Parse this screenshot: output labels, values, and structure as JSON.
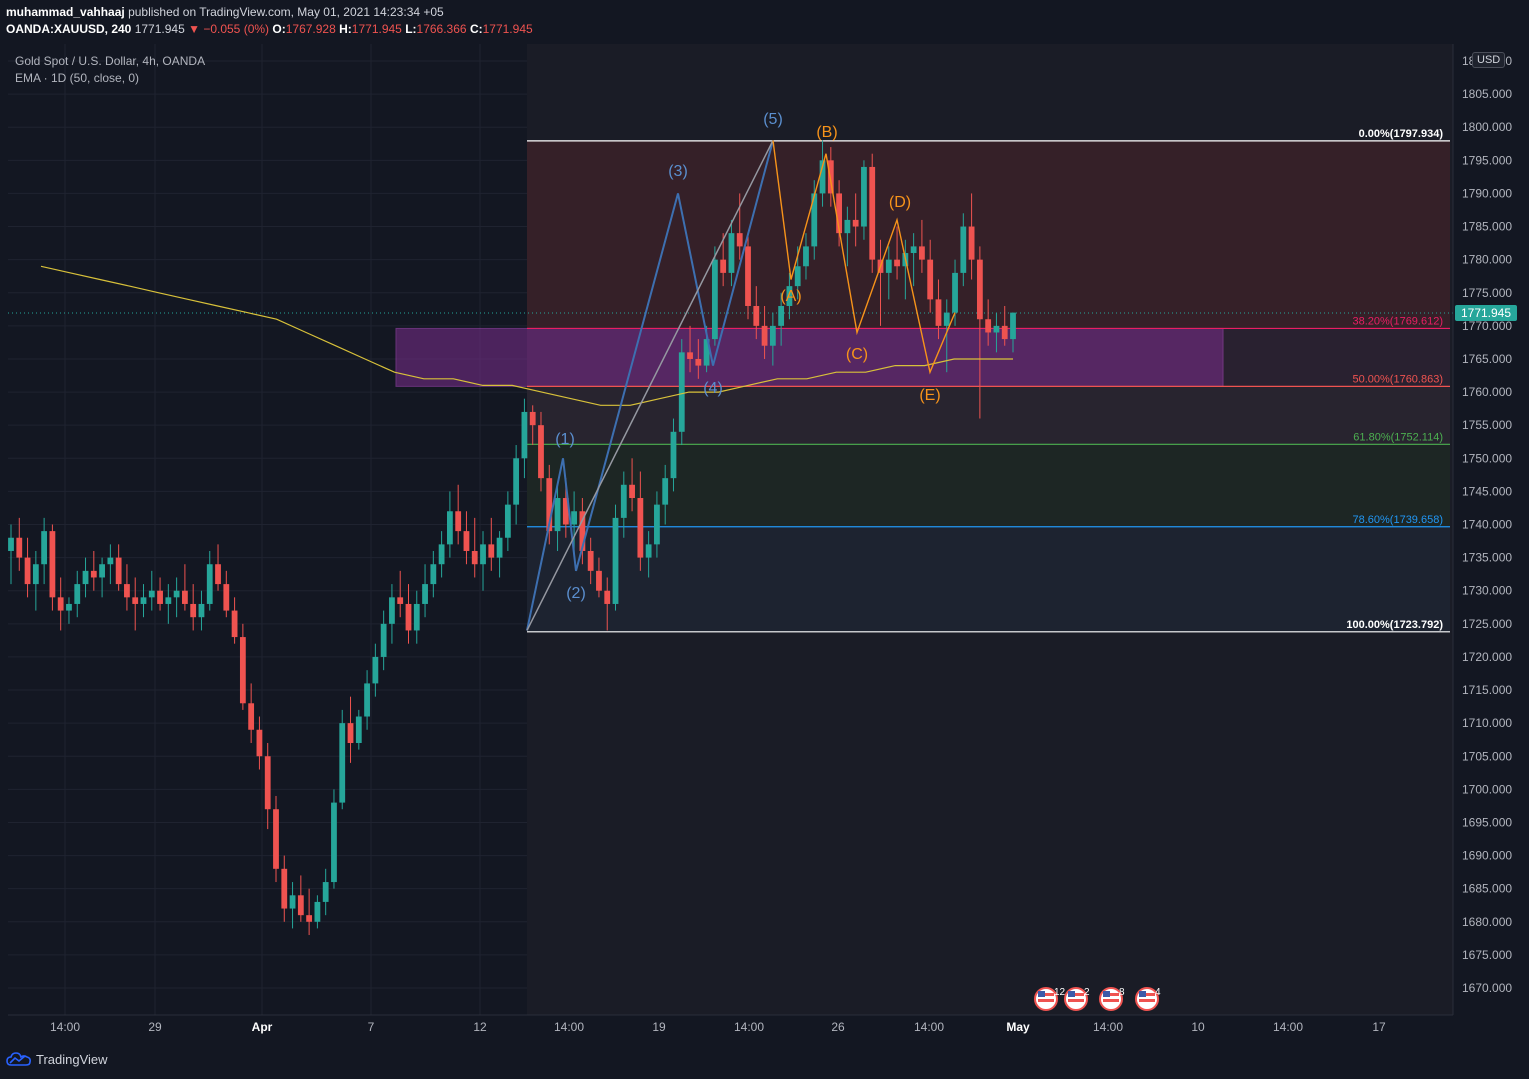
{
  "header": {
    "author": "muhammad_vahhaaj",
    "published_text": "published on TradingView.com, May 01, 2021 14:23:34 +05",
    "symbol": "OANDA:XAUUSD, 240",
    "last": "1771.945",
    "change": "▼ −0.055 (0%)",
    "o_label": "O:",
    "o_value": "1767.928",
    "h_label": "H:",
    "h_value": "1771.945",
    "l_label": "L:",
    "l_value": "1766.366",
    "c_label": "C:",
    "c_value": "1771.945"
  },
  "legend": {
    "title": "Gold Spot / U.S. Dollar, 4h, OANDA",
    "indicator": "EMA · 1D (50, close, 0)"
  },
  "currency": "USD",
  "footer": {
    "brand": "TradingView"
  },
  "colors": {
    "background": "#131722",
    "up": "#26a69a",
    "down": "#ef5350",
    "ema": "#d8c13a",
    "wave_blue": "#3d6fb0",
    "wave_orange": "#f7931a",
    "zone_purple": "#9c27b0"
  },
  "chart_data": {
    "type": "candlestick",
    "title": "Gold Spot / U.S. Dollar, 4h, OANDA",
    "ylim": [
      1665,
      1815
    ],
    "y_ticks": [
      1670,
      1675,
      1680,
      1685,
      1690,
      1695,
      1700,
      1705,
      1710,
      1715,
      1720,
      1725,
      1730,
      1735,
      1740,
      1745,
      1750,
      1755,
      1760,
      1765,
      1770,
      1775,
      1780,
      1785,
      1790,
      1795,
      1800,
      1805,
      1810
    ],
    "x_ticks": [
      "14:00",
      "29",
      "Apr",
      "7",
      "12",
      "14:00",
      "19",
      "14:00",
      "26",
      "14:00",
      "May",
      "14:00",
      "10",
      "14:00",
      "17"
    ],
    "current_price": "1771.945",
    "candles": [
      [
        1736,
        1740,
        1731,
        1738
      ],
      [
        1738,
        1741,
        1733,
        1735
      ],
      [
        1735,
        1738,
        1729,
        1731
      ],
      [
        1731,
        1736,
        1727,
        1734
      ],
      [
        1734,
        1741,
        1731,
        1739
      ],
      [
        1739,
        1740,
        1727,
        1729
      ],
      [
        1729,
        1732,
        1724,
        1727
      ],
      [
        1727,
        1729,
        1725,
        1728
      ],
      [
        1728,
        1733,
        1726,
        1731
      ],
      [
        1731,
        1735,
        1729,
        1733
      ],
      [
        1733,
        1736,
        1730,
        1732
      ],
      [
        1732,
        1735,
        1729,
        1734
      ],
      [
        1734,
        1737,
        1731,
        1735
      ],
      [
        1735,
        1737,
        1730,
        1731
      ],
      [
        1731,
        1734,
        1727,
        1729
      ],
      [
        1729,
        1732,
        1724,
        1728
      ],
      [
        1728,
        1731,
        1726,
        1729
      ],
      [
        1729,
        1733,
        1727,
        1730
      ],
      [
        1730,
        1732,
        1727,
        1728
      ],
      [
        1728,
        1731,
        1725,
        1729
      ],
      [
        1729,
        1732,
        1726,
        1730
      ],
      [
        1730,
        1734,
        1727,
        1728
      ],
      [
        1728,
        1731,
        1724,
        1726
      ],
      [
        1726,
        1730,
        1724,
        1728
      ],
      [
        1728,
        1736,
        1727,
        1734
      ],
      [
        1734,
        1737,
        1730,
        1731
      ],
      [
        1731,
        1733,
        1726,
        1727
      ],
      [
        1727,
        1729,
        1722,
        1723
      ],
      [
        1723,
        1725,
        1712,
        1713
      ],
      [
        1713,
        1716,
        1707,
        1709
      ],
      [
        1709,
        1711,
        1703,
        1705
      ],
      [
        1705,
        1707,
        1694,
        1697
      ],
      [
        1697,
        1699,
        1686,
        1688
      ],
      [
        1688,
        1690,
        1680,
        1682
      ],
      [
        1682,
        1686,
        1679,
        1684
      ],
      [
        1684,
        1687,
        1680,
        1681
      ],
      [
        1681,
        1685,
        1678,
        1680
      ],
      [
        1680,
        1684,
        1679,
        1683
      ],
      [
        1683,
        1688,
        1681,
        1686
      ],
      [
        1686,
        1700,
        1685,
        1698
      ],
      [
        1698,
        1712,
        1697,
        1710
      ],
      [
        1710,
        1714,
        1704,
        1707
      ],
      [
        1707,
        1712,
        1706,
        1711
      ],
      [
        1711,
        1718,
        1709,
        1716
      ],
      [
        1716,
        1722,
        1714,
        1720
      ],
      [
        1720,
        1727,
        1718,
        1725
      ],
      [
        1725,
        1731,
        1722,
        1729
      ],
      [
        1729,
        1733,
        1726,
        1728
      ],
      [
        1728,
        1731,
        1722,
        1724
      ],
      [
        1724,
        1730,
        1722,
        1728
      ],
      [
        1728,
        1734,
        1726,
        1731
      ],
      [
        1731,
        1736,
        1729,
        1734
      ],
      [
        1734,
        1739,
        1732,
        1737
      ],
      [
        1737,
        1745,
        1735,
        1742
      ],
      [
        1742,
        1746,
        1737,
        1739
      ],
      [
        1739,
        1742,
        1734,
        1736
      ],
      [
        1736,
        1741,
        1732,
        1734
      ],
      [
        1734,
        1739,
        1730,
        1737
      ],
      [
        1737,
        1741,
        1733,
        1735
      ],
      [
        1735,
        1739,
        1732,
        1738
      ],
      [
        1738,
        1745,
        1736,
        1743
      ],
      [
        1743,
        1752,
        1740,
        1750
      ],
      [
        1750,
        1759,
        1747,
        1757
      ],
      [
        1757,
        1758,
        1752,
        1755
      ],
      [
        1755,
        1757,
        1745,
        1747
      ],
      [
        1747,
        1749,
        1737,
        1739
      ],
      [
        1739,
        1746,
        1736,
        1744
      ],
      [
        1744,
        1747,
        1738,
        1740
      ],
      [
        1740,
        1745,
        1735,
        1742
      ],
      [
        1742,
        1744,
        1734,
        1736
      ],
      [
        1736,
        1738,
        1731,
        1733
      ],
      [
        1733,
        1735,
        1729,
        1730
      ],
      [
        1730,
        1732,
        1724,
        1728
      ],
      [
        1728,
        1743,
        1727,
        1741
      ],
      [
        1741,
        1748,
        1738,
        1746
      ],
      [
        1746,
        1750,
        1742,
        1744
      ],
      [
        1744,
        1748,
        1733,
        1735
      ],
      [
        1735,
        1739,
        1732,
        1737
      ],
      [
        1737,
        1745,
        1735,
        1743
      ],
      [
        1743,
        1749,
        1740,
        1747
      ],
      [
        1747,
        1756,
        1745,
        1754
      ],
      [
        1754,
        1768,
        1752,
        1766
      ],
      [
        1766,
        1770,
        1763,
        1765
      ],
      [
        1765,
        1768,
        1762,
        1764
      ],
      [
        1764,
        1770,
        1763,
        1768
      ],
      [
        1768,
        1782,
        1767,
        1780
      ],
      [
        1780,
        1784,
        1776,
        1778
      ],
      [
        1778,
        1786,
        1776,
        1784
      ],
      [
        1784,
        1790,
        1780,
        1782
      ],
      [
        1782,
        1784,
        1771,
        1773
      ],
      [
        1773,
        1776,
        1768,
        1770
      ],
      [
        1770,
        1773,
        1765,
        1767
      ],
      [
        1767,
        1772,
        1764,
        1770
      ],
      [
        1770,
        1775,
        1767,
        1773
      ],
      [
        1773,
        1778,
        1771,
        1776
      ],
      [
        1776,
        1782,
        1774,
        1779
      ],
      [
        1779,
        1784,
        1777,
        1782
      ],
      [
        1782,
        1792,
        1780,
        1790
      ],
      [
        1790,
        1798,
        1788,
        1795
      ],
      [
        1795,
        1797,
        1788,
        1790
      ],
      [
        1790,
        1792,
        1782,
        1784
      ],
      [
        1784,
        1788,
        1779,
        1786
      ],
      [
        1786,
        1790,
        1782,
        1785
      ],
      [
        1785,
        1795,
        1783,
        1794
      ],
      [
        1794,
        1796,
        1778,
        1780
      ],
      [
        1780,
        1783,
        1770,
        1778
      ],
      [
        1778,
        1782,
        1774,
        1780
      ],
      [
        1780,
        1785,
        1777,
        1779
      ],
      [
        1779,
        1783,
        1774,
        1781
      ],
      [
        1781,
        1784,
        1776,
        1782
      ],
      [
        1782,
        1786,
        1778,
        1780
      ],
      [
        1780,
        1783,
        1772,
        1774
      ],
      [
        1774,
        1777,
        1768,
        1770
      ],
      [
        1770,
        1774,
        1763,
        1772
      ],
      [
        1772,
        1780,
        1770,
        1778
      ],
      [
        1778,
        1787,
        1776,
        1785
      ],
      [
        1785,
        1790,
        1777,
        1780
      ],
      [
        1780,
        1782,
        1756,
        1771
      ],
      [
        1771,
        1774,
        1767,
        1769
      ],
      [
        1769,
        1772,
        1766,
        1770
      ],
      [
        1770,
        1773,
        1767,
        1768
      ],
      [
        1768,
        1772,
        1766,
        1772
      ]
    ],
    "ema": [
      1779,
      1778,
      1777,
      1776,
      1775,
      1774,
      1773,
      1772,
      1771,
      1769,
      1767,
      1765,
      1763,
      1762,
      1762,
      1761,
      1761,
      1760,
      1759,
      1758,
      1758,
      1759,
      1760,
      1760,
      1761,
      1762,
      1762,
      1763,
      1763,
      1764,
      1764,
      1765,
      1765,
      1765
    ],
    "fibonacci": [
      {
        "label": "0.00%(1797.934)",
        "price": 1797.934,
        "color": "#ffffff"
      },
      {
        "label": "38.20%(1769.612)",
        "price": 1769.612,
        "color": "#e91e63"
      },
      {
        "label": "50.00%(1760.863)",
        "price": 1760.863,
        "color": "#ef5350"
      },
      {
        "label": "61.80%(1752.114)",
        "price": 1752.114,
        "color": "#4caf50"
      },
      {
        "label": "78.60%(1739.658)",
        "price": 1739.658,
        "color": "#2196f3"
      },
      {
        "label": "100.00%(1723.792)",
        "price": 1723.792,
        "color": "#ffffff"
      }
    ],
    "zone": {
      "top": 1769.612,
      "bottom": 1760.863
    },
    "impulse_wave": {
      "labels": [
        "(1)",
        "(2)",
        "(3)",
        "(4)",
        "(5)"
      ],
      "prices": [
        1724,
        1750,
        1733,
        1790,
        1764,
        1798
      ]
    },
    "correction_wave": {
      "labels": [
        "(A)",
        "(B)",
        "(C)",
        "(D)",
        "(E)"
      ],
      "prices": [
        1798,
        1777,
        1796,
        1769,
        1786,
        1763,
        1772
      ]
    },
    "events": [
      "12",
      "2",
      "8",
      "4"
    ]
  }
}
